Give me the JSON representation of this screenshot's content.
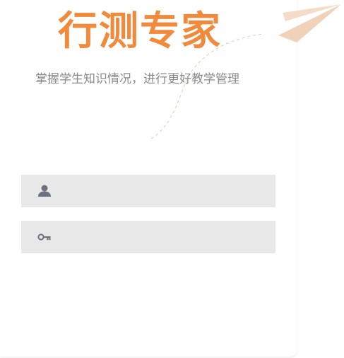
{
  "header": {
    "title": "行测专家",
    "subtitle": "掌握学生知识情况，进行更好教学管理"
  },
  "login": {
    "username": {
      "icon": "user-icon",
      "value": "",
      "placeholder": ""
    },
    "password": {
      "icon": "key-icon",
      "value": "",
      "placeholder": ""
    }
  },
  "colors": {
    "brand": "#f08a3c",
    "subtitle": "#8a8a8a",
    "field_background": "#e8e8e8",
    "icon": "#6c7280",
    "plane": "#f4dcc7"
  }
}
